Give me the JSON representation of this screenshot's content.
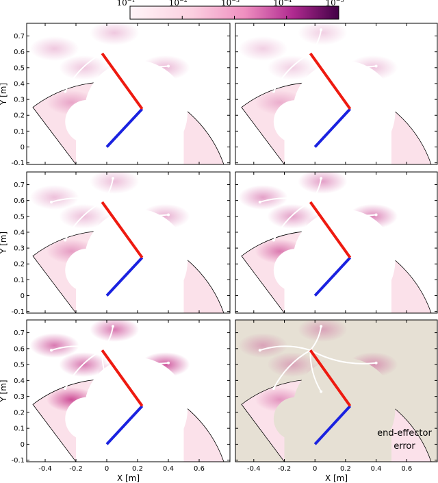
{
  "colors": {
    "region_fill": "#fbe1ea",
    "outside_fill": "#ffffff",
    "outside_fill_last": "#e6e0d4",
    "link1": "#1a22e0",
    "link2": "#ee1a10",
    "trajectory": "#ffffff",
    "cb_light": "#fff2f6",
    "cb_mid": "#e066a8",
    "cb_dark": "#4a0050"
  },
  "colorbar": {
    "ticks": [
      {
        "base": "10",
        "exp": "−1"
      },
      {
        "base": "10",
        "exp": "−2"
      },
      {
        "base": "10",
        "exp": "−3"
      },
      {
        "base": "10",
        "exp": "−4"
      },
      {
        "base": "10",
        "exp": "−5"
      }
    ]
  },
  "chart_data": {
    "type": "heatmap",
    "description_rows": 3,
    "description_cols": 2,
    "xlabel": "X [m]",
    "ylabel": "Y [m]",
    "xlim": [
      -0.52,
      0.8
    ],
    "ylim": [
      -0.11,
      0.78
    ],
    "xticks": [
      -0.4,
      -0.2,
      0,
      0.2,
      0.4,
      0.6
    ],
    "xtick_labels": [
      "-0.4",
      "-0.2",
      "0",
      "0.2",
      "0.4",
      "0.6"
    ],
    "yticks": [
      -0.1,
      0,
      0.1,
      0.2,
      0.3,
      0.4,
      0.5,
      0.6,
      0.7
    ],
    "ytick_labels": [
      "-0.1",
      "0",
      "0.1",
      "0.2",
      "0.3",
      "0.4",
      "0.5",
      "0.6",
      "0.7"
    ],
    "colorbar_range": [
      0.1,
      1e-05
    ],
    "robot_arm": {
      "base": [
        0.0,
        0.0
      ],
      "elbow": [
        0.23,
        0.24
      ],
      "end_effector": [
        -0.03,
        0.59
      ]
    },
    "trajectories": {
      "two_point": [
        [
          -0.27,
          0.35
        ],
        [
          -0.03,
          0.59
        ],
        [
          0.4,
          0.51
        ]
      ],
      "three_point": [
        [
          -0.27,
          0.35
        ],
        [
          -0.03,
          0.59
        ],
        [
          0.4,
          0.51
        ],
        [
          0.04,
          0.74
        ]
      ],
      "four_point": [
        [
          -0.27,
          0.35
        ],
        [
          -0.03,
          0.59
        ],
        [
          0.4,
          0.51
        ],
        [
          0.04,
          0.74
        ],
        [
          -0.36,
          0.59
        ]
      ],
      "five_point": [
        [
          -0.27,
          0.35
        ],
        [
          -0.03,
          0.59
        ],
        [
          0.4,
          0.51
        ],
        [
          0.04,
          0.74
        ],
        [
          -0.36,
          0.59
        ],
        [
          0.04,
          0.33
        ]
      ]
    },
    "panels": [
      {
        "id": "row1-left",
        "trajectory": "two_point",
        "intensity": 0.35
      },
      {
        "id": "row1-right",
        "trajectory": "three_point",
        "intensity": 0.3
      },
      {
        "id": "row2-left",
        "trajectory": "four_point",
        "intensity": 0.4
      },
      {
        "id": "row2-right",
        "trajectory": "four_point",
        "intensity": 0.6
      },
      {
        "id": "row3-left",
        "trajectory": "five_point",
        "intensity": 0.85
      },
      {
        "id": "row3-right",
        "trajectory": "five_point",
        "intensity": 0.45,
        "annotation": "end-effector error"
      }
    ]
  }
}
